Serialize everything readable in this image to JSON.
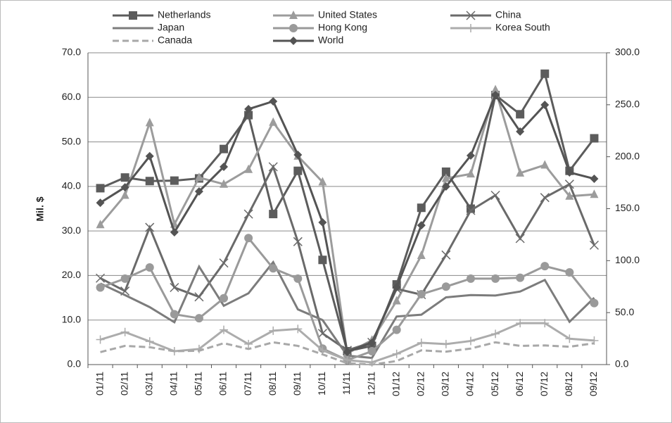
{
  "chart_data": {
    "type": "line",
    "y_label": "Mil. $",
    "categories": [
      "01/11",
      "02/11",
      "03/11",
      "04/11",
      "05/11",
      "06/11",
      "07/11",
      "08/11",
      "09/11",
      "10/11",
      "11/11",
      "12/11",
      "01/12",
      "02/12",
      "03/12",
      "04/12",
      "05/12",
      "06/12",
      "07/12",
      "08/12",
      "09/12"
    ],
    "ylim": [
      0,
      70
    ],
    "yticks": [
      {
        "value": 0,
        "label": "0.0"
      },
      {
        "value": 10,
        "label": "10.0"
      },
      {
        "value": 20,
        "label": "20.0"
      },
      {
        "value": 30,
        "label": "30.0"
      },
      {
        "value": 40,
        "label": "40.0"
      },
      {
        "value": 50,
        "label": "50.0"
      },
      {
        "value": 60,
        "label": "60.0"
      },
      {
        "value": 70,
        "label": "70.0"
      }
    ],
    "y2lim": [
      0,
      300
    ],
    "y2ticks": [
      {
        "value": 0,
        "label": "0.0"
      },
      {
        "value": 50,
        "label": "50.0"
      },
      {
        "value": 100,
        "label": "100.0"
      },
      {
        "value": 150,
        "label": "150.0"
      },
      {
        "value": 200,
        "label": "200.0"
      },
      {
        "value": 250,
        "label": "250.0"
      },
      {
        "value": 300,
        "label": "300.0"
      }
    ],
    "grid": true,
    "legend": "top",
    "series": [
      {
        "name": "Netherlands",
        "color": "#5c5c5c",
        "marker": "square",
        "values": [
          39.6,
          42,
          41.2,
          41.3,
          41.8,
          48.4,
          56,
          33.8,
          43.5,
          23.5,
          3,
          4.2,
          18,
          35.2,
          43.3,
          35,
          60.5,
          56.2,
          65.3,
          43.5,
          50.8
        ]
      },
      {
        "name": "United States",
        "color": "#9c9c9c",
        "marker": "triangle",
        "values": [
          31.4,
          38,
          54.3,
          31.5,
          42,
          40.5,
          43.8,
          54.4,
          46.8,
          41,
          2.5,
          5.5,
          14.3,
          24.5,
          41.8,
          42.8,
          61.7,
          43,
          44.8,
          37.8,
          38.2
        ]
      },
      {
        "name": "China",
        "color": "#6a6a6a",
        "marker": "x",
        "values": [
          19.4,
          16.5,
          30.8,
          17.3,
          15.2,
          22.8,
          33.8,
          44.4,
          27.6,
          7,
          3.2,
          5,
          17,
          15.7,
          24.6,
          34.6,
          38,
          28.3,
          37.5,
          40.5,
          26.8
        ]
      },
      {
        "name": "Japan",
        "color": "#7c7c7c",
        "marker": "none",
        "values": [
          18.2,
          15.6,
          12.9,
          9.5,
          22,
          13.2,
          16,
          23,
          12.4,
          10,
          2,
          1.5,
          10.8,
          11.2,
          15.1,
          15.6,
          15.5,
          16.4,
          19,
          9.6,
          15
        ]
      },
      {
        "name": "Hong Kong",
        "color": "#9a9a9a",
        "marker": "circle",
        "values": [
          17.3,
          19.3,
          21.8,
          11.3,
          10.4,
          14.9,
          28.4,
          21.6,
          19.3,
          3.6,
          1,
          3,
          7.8,
          15.8,
          17.5,
          19.3,
          19.3,
          19.5,
          22.1,
          20.7,
          13.8
        ]
      },
      {
        "name": "Korea South",
        "color": "#acacac",
        "marker": "plus",
        "values": [
          5.6,
          7.3,
          5.2,
          3,
          3.5,
          7.8,
          4.6,
          7.6,
          8,
          3.2,
          1,
          0.5,
          2.4,
          4.9,
          4.6,
          5.3,
          6.9,
          9.3,
          9.3,
          5.8,
          5.4
        ]
      },
      {
        "name": "Canada",
        "color": "#a8a8a8",
        "marker": "none",
        "dash": true,
        "values": [
          2.8,
          4.2,
          3.9,
          3,
          3.1,
          4.8,
          3.5,
          5,
          4.2,
          2.3,
          0.3,
          0,
          0.8,
          3.2,
          2.9,
          3.6,
          5,
          4.2,
          4.3,
          4,
          4.8
        ]
      },
      {
        "name": "World",
        "color": "#545454",
        "marker": "diamond",
        "axis": "y2",
        "values": [
          155.7,
          170.6,
          200.5,
          127.3,
          166.6,
          190.3,
          245.8,
          253.3,
          201.8,
          136.8,
          12.2,
          21,
          74.5,
          134,
          171.3,
          201.1,
          259.4,
          224.2,
          249.9,
          184.9,
          178.8
        ]
      }
    ]
  }
}
